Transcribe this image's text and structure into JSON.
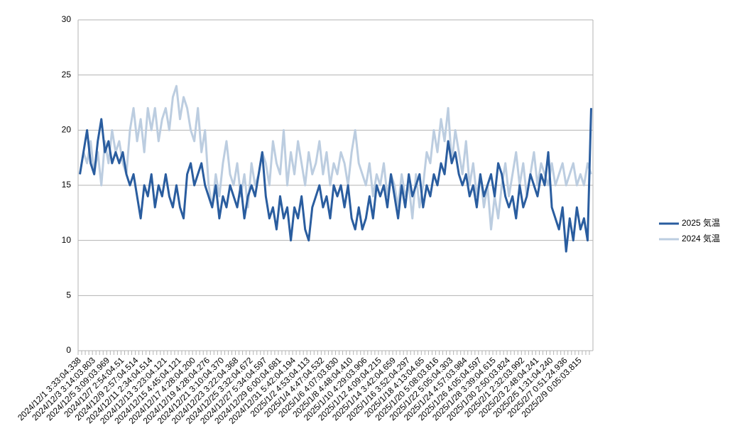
{
  "chart_data": {
    "type": "line",
    "categories": [
      "2024/12/1 3:33:04.338",
      null,
      null,
      null,
      "2024/12/3 3:14:03.803",
      null,
      null,
      null,
      "2024/12/5 3:09:03.969",
      null,
      null,
      null,
      "2024/12/7 2:54:04.51",
      null,
      null,
      null,
      "2024/12/9 2:57:04.514",
      null,
      null,
      null,
      "2024/12/11 2:34:04.514",
      null,
      null,
      null,
      "2024/12/13 3:23:04.121",
      null,
      null,
      null,
      "2024/12/15 4:45:04.121",
      null,
      null,
      null,
      "2024/12/17 4:28:04.200",
      null,
      null,
      null,
      "2024/12/19 4:28:04.276",
      null,
      null,
      null,
      "2024/12/21 3:10:04.370",
      null,
      null,
      null,
      "2024/12/23 3:22:04.368",
      null,
      null,
      null,
      "2024/12/25 3:32:04.672",
      null,
      null,
      null,
      "2024/12/27 5:34:04.597",
      null,
      null,
      null,
      "2024/12/29 6:00:04.681",
      null,
      null,
      null,
      "2024/12/31 5:42:04.194",
      null,
      null,
      null,
      "2025/1/2 4:53:04.113",
      null,
      null,
      null,
      "2025/1/4 4:47:04.532",
      null,
      null,
      null,
      "2025/1/6 4:07:03.830",
      null,
      null,
      null,
      "2025/1/8 4:48:04.410",
      null,
      null,
      null,
      "2025/1/10 4:29:03.906",
      null,
      null,
      null,
      "2025/1/12 4:09:04.215",
      null,
      null,
      null,
      "2025/1/14 3:42:04.659",
      null,
      null,
      null,
      "2025/1/16 3:52:04.297",
      null,
      null,
      null,
      "2025/1/18 4:13:04.65",
      null,
      null,
      null,
      "2025/1/20 5:08:03.816",
      null,
      null,
      null,
      "2025/1/22 5:05:04.303",
      null,
      null,
      null,
      "2025/1/24 4:57:03.984",
      null,
      null,
      null,
      "2025/1/26 4:05:04.597",
      null,
      null,
      null,
      "2025/1/28 3:39:04.615",
      null,
      null,
      null,
      "2025/1/30 2:50:03.824",
      null,
      null,
      null,
      "2025/2/1 2:32:03.992",
      null,
      null,
      null,
      "2025/2/3 2:48:04.241",
      null,
      null,
      null,
      "2025/2/5 1:31:04.240",
      null,
      null,
      null,
      "2025/2/7 0:51:24.936",
      null,
      null,
      null,
      "2025/2/9 0:05:03.815",
      null,
      null,
      null
    ],
    "series": [
      {
        "name": "2024 気温",
        "color": "#bccde0",
        "values": [
          16,
          18,
          17,
          19,
          16,
          18,
          15,
          19,
          17,
          20,
          18,
          19,
          17,
          16,
          20,
          22,
          19,
          21,
          18,
          22,
          20,
          22,
          19,
          21,
          22,
          20,
          23,
          24,
          21,
          23,
          22,
          20,
          19,
          22,
          18,
          20,
          15,
          13,
          16,
          14,
          17,
          19,
          16,
          15,
          17,
          14,
          16,
          13,
          17,
          15,
          16,
          18,
          17,
          15,
          19,
          17,
          16,
          20,
          15,
          18,
          16,
          19,
          17,
          15,
          18,
          16,
          17,
          19,
          16,
          18,
          15,
          17,
          16,
          18,
          17,
          15,
          18,
          20,
          17,
          16,
          15,
          17,
          14,
          16,
          15,
          17,
          14,
          16,
          15,
          13,
          16,
          14,
          15,
          12,
          16,
          13,
          15,
          18,
          17,
          20,
          18,
          21,
          19,
          22,
          17,
          20,
          18,
          16,
          19,
          15,
          17,
          14,
          16,
          13,
          15,
          11,
          14,
          12,
          15,
          17,
          14,
          16,
          18,
          15,
          17,
          14,
          16,
          18,
          15,
          17,
          16,
          15,
          17,
          15,
          16,
          17,
          15,
          16,
          17,
          15,
          16,
          15,
          17,
          16
        ]
      },
      {
        "name": "2025 気温",
        "color": "#2a5d9f",
        "values": [
          16,
          18,
          20,
          17,
          16,
          19,
          21,
          18,
          19,
          17,
          18,
          17,
          18,
          16,
          15,
          16,
          14,
          12,
          15,
          14,
          16,
          13,
          15,
          14,
          16,
          14,
          13,
          15,
          13,
          12,
          16,
          17,
          15,
          16,
          17,
          15,
          14,
          13,
          15,
          12,
          14,
          13,
          15,
          14,
          13,
          15,
          12,
          14,
          15,
          14,
          16,
          18,
          14,
          12,
          13,
          11,
          14,
          12,
          13,
          10,
          13,
          12,
          14,
          11,
          10,
          13,
          14,
          15,
          13,
          14,
          12,
          15,
          14,
          15,
          13,
          15,
          12,
          11,
          13,
          11,
          12,
          14,
          12,
          15,
          14,
          15,
          13,
          16,
          14,
          12,
          15,
          13,
          16,
          14,
          15,
          16,
          13,
          15,
          14,
          16,
          15,
          17,
          16,
          19,
          17,
          18,
          16,
          15,
          16,
          14,
          15,
          13,
          16,
          14,
          15,
          16,
          14,
          17,
          16,
          14,
          13,
          14,
          12,
          15,
          13,
          14,
          16,
          15,
          14,
          16,
          15,
          18,
          13,
          12,
          11,
          13,
          9,
          12,
          10,
          13,
          11,
          12,
          10,
          22
        ]
      }
    ],
    "ylim": [
      0,
      30
    ],
    "yticks": [
      0,
      5,
      10,
      15,
      20,
      25,
      30
    ],
    "grid": true,
    "legend": "right"
  }
}
